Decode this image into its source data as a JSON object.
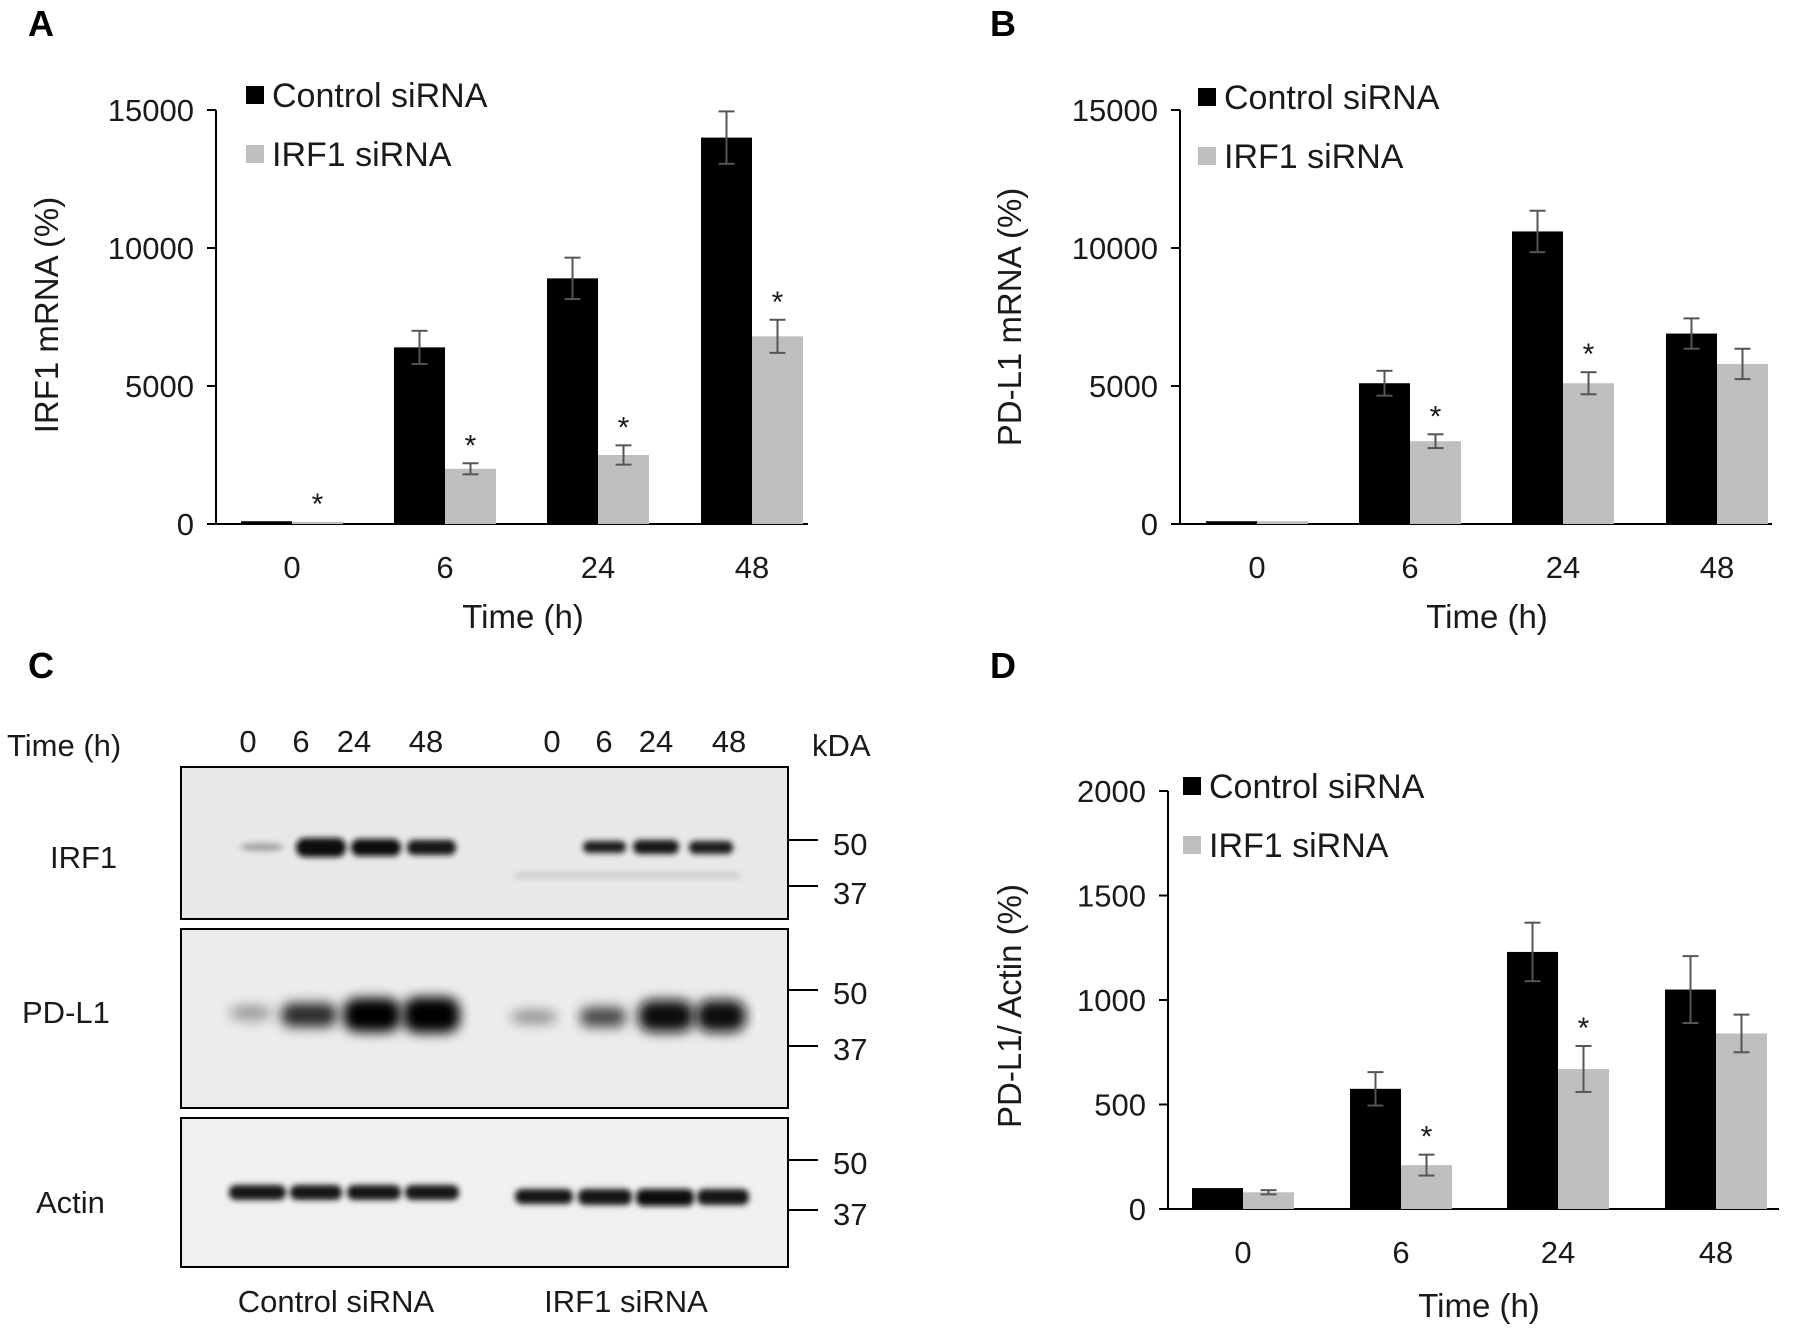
{
  "panels": {
    "a": "A",
    "b": "B",
    "c": "C",
    "d": "D"
  },
  "chart_data": [
    {
      "type": "bar",
      "panel": "A",
      "categories": [
        "0",
        "6",
        "24",
        "48"
      ],
      "xlabel": "Time (h)",
      "ylabel": "IRF1 mRNA (%)",
      "ylim": [
        0,
        15000
      ],
      "yticks": [
        "0",
        "5000",
        "10000",
        "15000"
      ],
      "legend_position": "top-left",
      "series": [
        {
          "name": "Control siRNA",
          "color": "#000000",
          "values": [
            100,
            6400,
            8900,
            14000
          ],
          "errors": [
            0,
            600,
            750,
            950
          ]
        },
        {
          "name": "IRF1 siRNA",
          "color": "#bfbfbf",
          "values": [
            80,
            2000,
            2500,
            6800
          ],
          "errors": [
            0,
            200,
            350,
            600
          ]
        }
      ],
      "significance": [
        "*",
        "*",
        "*",
        "*"
      ]
    },
    {
      "type": "bar",
      "panel": "B",
      "categories": [
        "0",
        "6",
        "24",
        "48"
      ],
      "xlabel": "Time (h)",
      "ylabel": "PD-L1 mRNA (%)",
      "ylim": [
        0,
        15000
      ],
      "yticks": [
        "0",
        "5000",
        "10000",
        "15000"
      ],
      "legend_position": "top-left",
      "series": [
        {
          "name": "Control siRNA",
          "color": "#000000",
          "values": [
            100,
            5100,
            10600,
            6900
          ],
          "errors": [
            0,
            450,
            750,
            550
          ]
        },
        {
          "name": "IRF1 siRNA",
          "color": "#bfbfbf",
          "values": [
            100,
            3000,
            5100,
            5800
          ],
          "errors": [
            0,
            250,
            400,
            550
          ]
        }
      ],
      "significance": [
        "",
        "*",
        "*",
        ""
      ]
    },
    {
      "type": "bar",
      "panel": "D",
      "categories": [
        "0",
        "6",
        "24",
        "48"
      ],
      "xlabel": "Time (h)",
      "ylabel": "PD-L1/ Actin (%)",
      "ylim": [
        0,
        2000
      ],
      "yticks": [
        "0",
        "500",
        "1000",
        "1500",
        "2000"
      ],
      "legend_position": "top-left",
      "series": [
        {
          "name": "Control siRNA",
          "color": "#000000",
          "values": [
            100,
            575,
            1230,
            1050
          ],
          "errors": [
            0,
            80,
            140,
            160
          ]
        },
        {
          "name": "IRF1 siRNA",
          "color": "#bfbfbf",
          "values": [
            80,
            210,
            670,
            840
          ],
          "errors": [
            10,
            50,
            110,
            90
          ]
        }
      ],
      "significance": [
        "",
        "*",
        "*",
        ""
      ]
    }
  ],
  "western_blot": {
    "time_label": "Time (h)",
    "kda_label": "kDA",
    "lanes_control": [
      "0",
      "6",
      "24",
      "48"
    ],
    "lanes_irf1": [
      "0",
      "6",
      "24",
      "48"
    ],
    "group_labels": [
      "Control siRNA",
      "IRF1 siRNA"
    ],
    "blots": [
      {
        "name": "IRF1",
        "markers": [
          "50",
          "37"
        ]
      },
      {
        "name": "PD-L1",
        "markers": [
          "50",
          "37"
        ]
      },
      {
        "name": "Actin",
        "markers": [
          "50",
          "37"
        ]
      }
    ]
  }
}
